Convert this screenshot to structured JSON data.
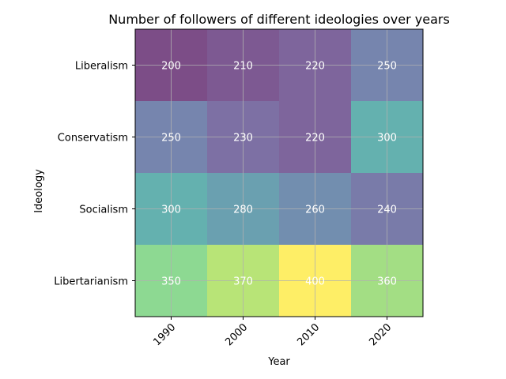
{
  "chart_data": {
    "type": "heatmap",
    "title": "Number of followers of different ideologies over years",
    "xlabel": "Year",
    "ylabel": "Ideology",
    "x_categories": [
      "1990",
      "2000",
      "2010",
      "2020"
    ],
    "y_categories": [
      "Liberalism",
      "Conservatism",
      "Socialism",
      "Libertarianism"
    ],
    "values": [
      [
        200,
        210,
        220,
        250
      ],
      [
        250,
        230,
        220,
        300
      ],
      [
        300,
        280,
        260,
        240
      ],
      [
        350,
        370,
        400,
        360
      ]
    ],
    "value_range": [
      200,
      400
    ],
    "colormap": "viridis",
    "cell_alpha": 0.7,
    "grid": true,
    "x_tick_rotation": 45,
    "cell_text_color": "#ffffff"
  }
}
